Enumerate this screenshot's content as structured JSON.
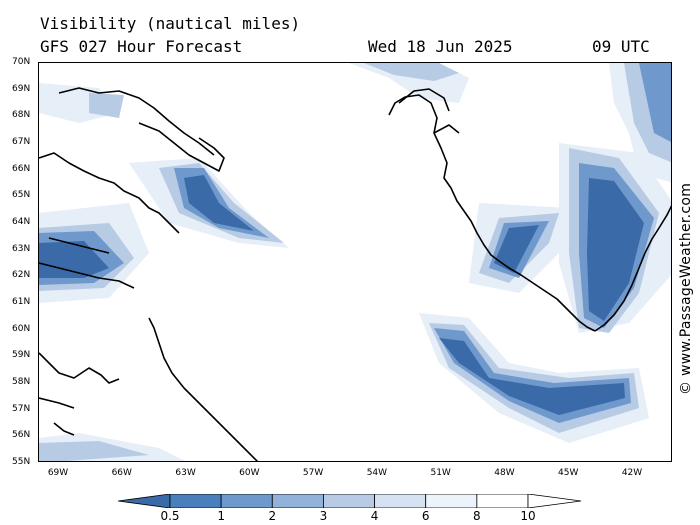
{
  "header": {
    "title": "Visibility (nautical miles)",
    "subtitle": "GFS 027 Hour Forecast",
    "date": "Wed 18 Jun 2025",
    "time": "09 UTC"
  },
  "credit": "© www.PassageWeather.com",
  "axes": {
    "latitudes": [
      "70N",
      "69N",
      "68N",
      "67N",
      "66N",
      "65N",
      "64N",
      "63N",
      "62N",
      "61N",
      "60N",
      "59N",
      "58N",
      "57N",
      "56N",
      "55N"
    ],
    "longitudes": [
      "69W",
      "66W",
      "63W",
      "60W",
      "57W",
      "54W",
      "51W",
      "48W",
      "45W",
      "42W"
    ]
  },
  "legend": {
    "labels": [
      "0.5",
      "1",
      "2",
      "3",
      "4",
      "6",
      "8",
      "10"
    ],
    "colors": [
      "#3a6aa8",
      "#4a7fbd",
      "#6f98cc",
      "#93b2d9",
      "#b7cbe5",
      "#d6e2f1",
      "#edf3fa",
      "#ffffff"
    ]
  },
  "colors": {
    "dark_blue": "#3a6aa8",
    "mid_blue": "#6f98cc",
    "light_blue": "#b7cbe5",
    "pale_blue": "#dde8f4",
    "coast": "#000000"
  }
}
